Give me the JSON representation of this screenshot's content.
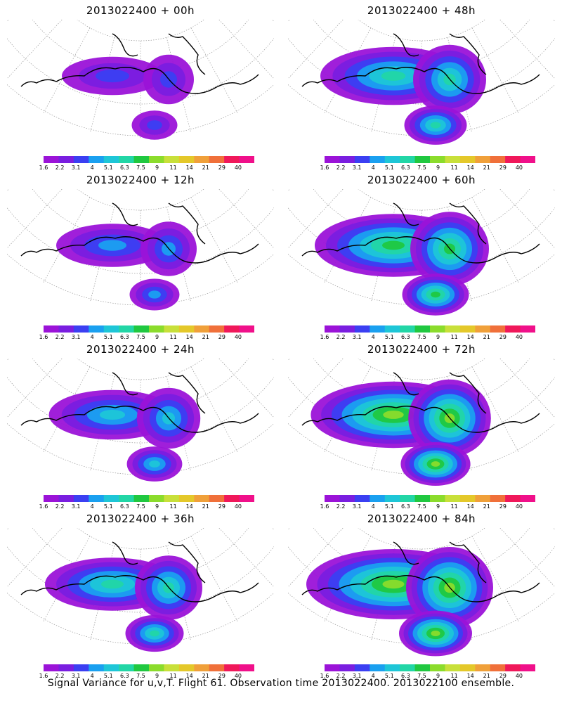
{
  "panels": [
    {
      "title": "2013022400  + 00h",
      "intensity": 0.15
    },
    {
      "title": "2013022400  + 48h",
      "intensity": 0.55
    },
    {
      "title": "2013022400  + 12h",
      "intensity": 0.25
    },
    {
      "title": "2013022400  + 60h",
      "intensity": 0.65
    },
    {
      "title": "2013022400  + 24h",
      "intensity": 0.38
    },
    {
      "title": "2013022400  + 72h",
      "intensity": 0.72
    },
    {
      "title": "2013022400  + 36h",
      "intensity": 0.45
    },
    {
      "title": "2013022400  + 84h",
      "intensity": 0.8
    }
  ],
  "colorbar": {
    "labels": [
      "1.6",
      "2.2",
      "3.1",
      "4",
      "5.1",
      "6.3",
      "7.5",
      "9",
      "11",
      "14",
      "21",
      "29",
      "40"
    ],
    "colors": [
      "#9b13d8",
      "#7a1ee0",
      "#3b3ff2",
      "#1aa0f0",
      "#1ec6d7",
      "#22d6a6",
      "#20c840",
      "#8bdc2c",
      "#c8e03a",
      "#e4c82a",
      "#f0a03a",
      "#f0703a",
      "#f0185a",
      "#f0108a"
    ]
  },
  "caption": "Signal Variance for u,v,T. Flight 61. Observation time 2013022400. 2013022100 ensemble."
}
